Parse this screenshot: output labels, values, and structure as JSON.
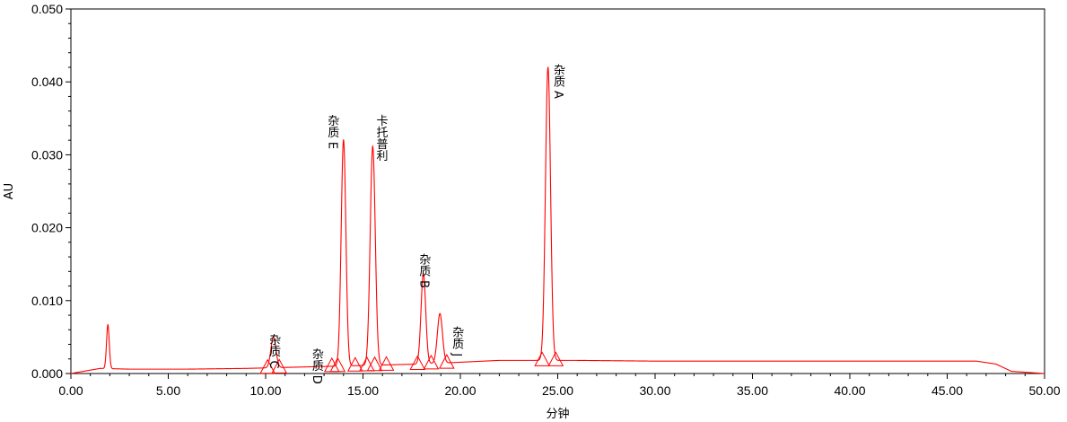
{
  "chart_data": {
    "type": "line",
    "title": "",
    "xlabel": "分钟",
    "ylabel": "AU",
    "xlim": [
      0,
      50
    ],
    "ylim": [
      0,
      0.05
    ],
    "x_ticks": [
      "0.00",
      "5.00",
      "10.00",
      "15.00",
      "20.00",
      "25.00",
      "30.00",
      "35.00",
      "40.00",
      "45.00",
      "50.00"
    ],
    "y_ticks": [
      "0.000",
      "0.010",
      "0.020",
      "0.030",
      "0.040",
      "0.050"
    ],
    "grid": false,
    "line_color": "#ff0000",
    "baseline": [
      {
        "x": 0.0,
        "y": 0.0
      },
      {
        "x": 1.5,
        "y": 0.0007
      },
      {
        "x": 3.0,
        "y": 0.0006
      },
      {
        "x": 6.0,
        "y": 0.0006
      },
      {
        "x": 9.0,
        "y": 0.0007
      },
      {
        "x": 12.0,
        "y": 0.0009
      },
      {
        "x": 15.0,
        "y": 0.0011
      },
      {
        "x": 18.0,
        "y": 0.0013
      },
      {
        "x": 22.0,
        "y": 0.0018
      },
      {
        "x": 26.0,
        "y": 0.0018
      },
      {
        "x": 30.0,
        "y": 0.0017
      },
      {
        "x": 35.0,
        "y": 0.0017
      },
      {
        "x": 40.0,
        "y": 0.0017
      },
      {
        "x": 46.5,
        "y": 0.0017
      },
      {
        "x": 47.5,
        "y": 0.0013
      },
      {
        "x": 48.3,
        "y": 0.0003
      },
      {
        "x": 50.0,
        "y": 0.0
      }
    ],
    "peaks": [
      {
        "rt": 1.9,
        "height": 0.006,
        "width": 0.07,
        "label": ""
      },
      {
        "rt": 10.4,
        "height": 0.0042,
        "width": 0.13,
        "label": "杂质 C"
      },
      {
        "rt": 14.0,
        "height": 0.031,
        "width": 0.12,
        "label": "杂质 E"
      },
      {
        "rt": 15.5,
        "height": 0.03,
        "width": 0.13,
        "label": "卡托普利"
      },
      {
        "rt": 18.1,
        "height": 0.0124,
        "width": 0.12,
        "label": "杂质 B"
      },
      {
        "rt": 18.95,
        "height": 0.0068,
        "width": 0.13,
        "label": "杂质 J"
      },
      {
        "rt": 24.5,
        "height": 0.0402,
        "width": 0.13,
        "label": "杂质 A"
      }
    ],
    "annotations": [
      {
        "text": "杂质 C",
        "x": 10.4,
        "y": 0.0055
      },
      {
        "text": "杂质 D",
        "x": 12.6,
        "y": 0.0035
      },
      {
        "text": "杂质 E",
        "x": 13.4,
        "y": 0.0355
      },
      {
        "text": "卡托普利",
        "x": 15.9,
        "y": 0.0355
      },
      {
        "text": "杂质 B",
        "x": 18.1,
        "y": 0.0165
      },
      {
        "text": "杂质 J",
        "x": 19.8,
        "y": 0.0065
      },
      {
        "text": "杂质 A",
        "x": 25.0,
        "y": 0.0425
      }
    ],
    "integration_markers": [
      {
        "x": 10.1
      },
      {
        "x": 10.7
      },
      {
        "x": 13.4
      },
      {
        "x": 13.7
      },
      {
        "x": 14.6
      },
      {
        "x": 15.2
      },
      {
        "x": 15.6
      },
      {
        "x": 16.2
      },
      {
        "x": 17.8
      },
      {
        "x": 18.5
      },
      {
        "x": 19.3
      },
      {
        "x": 24.2
      },
      {
        "x": 24.9
      }
    ]
  }
}
